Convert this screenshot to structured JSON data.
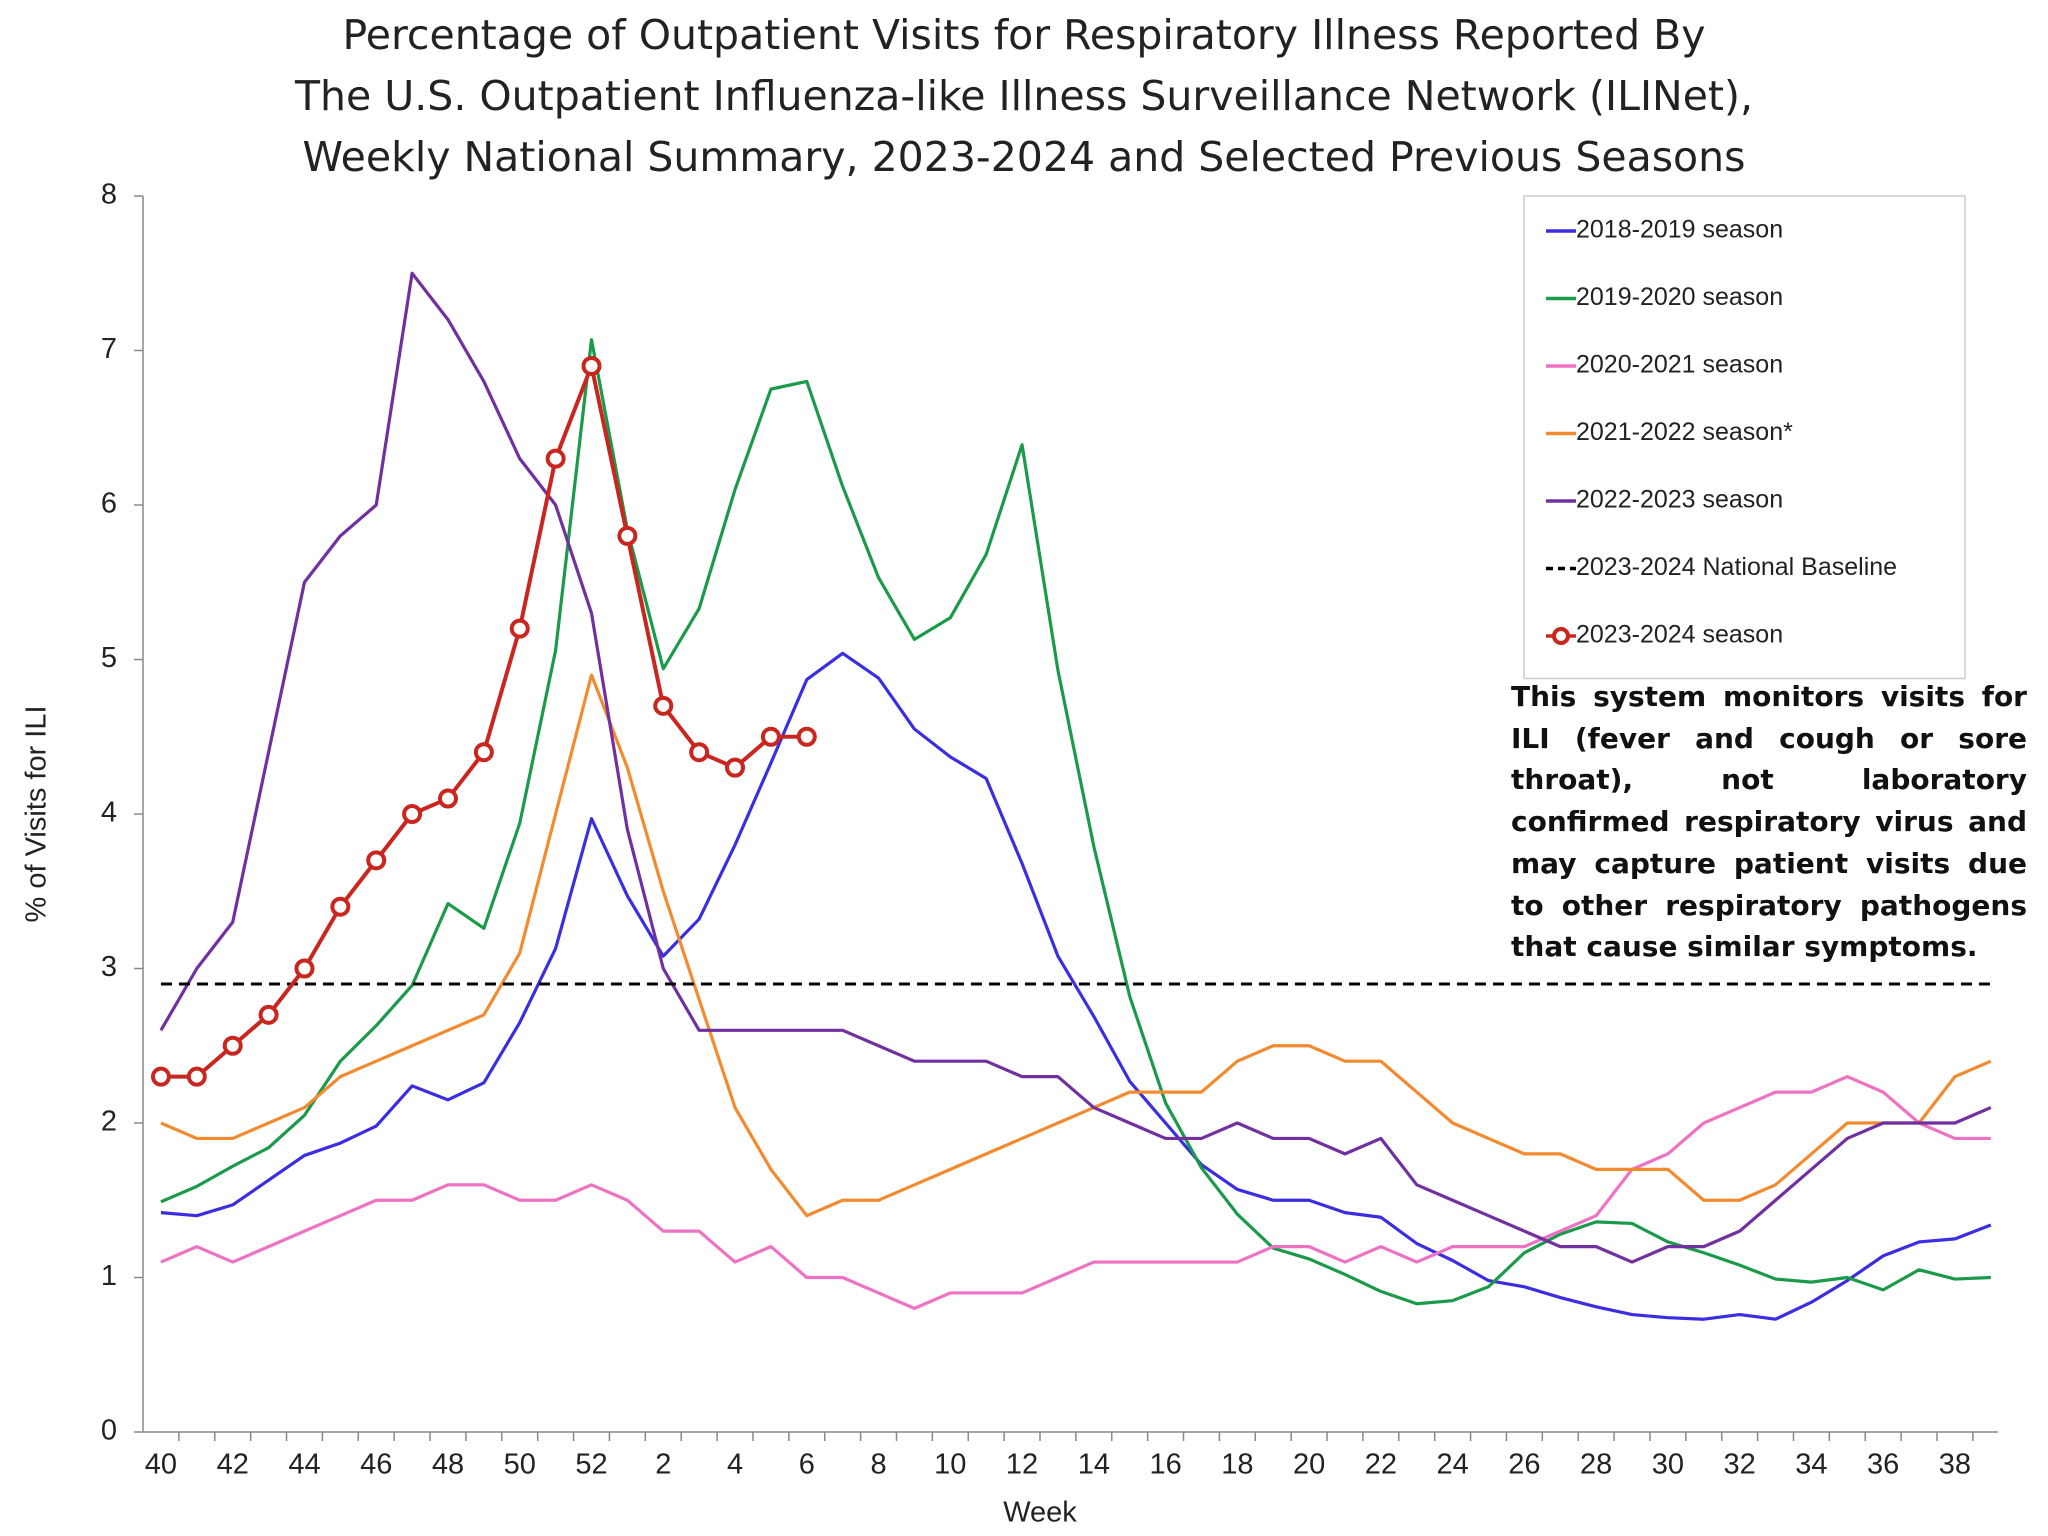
{
  "chart_data": {
    "type": "line",
    "title": [
      "Percentage of Outpatient Visits for Respiratory Illness Reported By",
      "The U.S. Outpatient Influenza-like Illness Surveillance Network (ILINet),",
      "Weekly National Summary, 2023-2024 and Selected Previous Seasons"
    ],
    "x_label": "Week",
    "y_label": "% of Visits for ILI",
    "categories": [
      40,
      null,
      42,
      null,
      44,
      null,
      46,
      null,
      48,
      null,
      50,
      null,
      52,
      null,
      2,
      null,
      4,
      null,
      6,
      null,
      8,
      null,
      10,
      null,
      12,
      null,
      14,
      null,
      16,
      null,
      18,
      null,
      20,
      null,
      22,
      null,
      24,
      null,
      26,
      null,
      28,
      null,
      30,
      null,
      32,
      null,
      34,
      null,
      36,
      null,
      38,
      null
    ],
    "ylim": [
      0,
      8
    ],
    "yticks": [
      0,
      1,
      2,
      3,
      4,
      5,
      6,
      7,
      8
    ],
    "grid": false,
    "legend": "upper right",
    "series": [
      {
        "name": "2018-2019 season",
        "color": "#3a2ee0",
        "values": [
          1.42,
          1.4,
          1.47,
          1.63,
          1.79,
          1.87,
          1.98,
          2.24,
          2.15,
          2.26,
          2.65,
          3.13,
          3.97,
          3.47,
          3.08,
          3.32,
          3.8,
          4.33,
          4.87,
          5.04,
          4.88,
          4.55,
          4.37,
          4.23,
          3.68,
          3.08,
          2.69,
          2.27,
          2.0,
          1.73,
          1.57,
          1.5,
          1.5,
          1.42,
          1.39,
          1.22,
          1.11,
          0.98,
          0.94,
          0.87,
          0.81,
          0.76,
          0.74,
          0.73,
          0.76,
          0.73,
          0.84,
          0.98,
          1.14,
          1.23,
          1.25,
          1.34
        ]
      },
      {
        "name": "2019-2020 season",
        "color": "#1a9a4a",
        "values": [
          1.49,
          1.59,
          1.72,
          1.84,
          2.05,
          2.4,
          2.63,
          2.89,
          3.42,
          3.26,
          3.94,
          5.06,
          7.07,
          5.84,
          4.94,
          5.33,
          6.1,
          6.75,
          6.8,
          6.12,
          5.53,
          5.13,
          5.27,
          5.68,
          6.39,
          4.93,
          3.79,
          2.82,
          2.13,
          1.71,
          1.41,
          1.19,
          1.12,
          1.02,
          0.91,
          0.83,
          0.85,
          0.94,
          1.16,
          1.28,
          1.36,
          1.35,
          1.23,
          1.16,
          1.08,
          0.99,
          0.97,
          1.0,
          0.92,
          1.05,
          0.99,
          1.0
        ]
      },
      {
        "name": "2020-2021 season",
        "color": "#ee72c3",
        "values": [
          1.1,
          1.2,
          1.1,
          1.2,
          1.3,
          1.4,
          1.5,
          1.5,
          1.6,
          1.6,
          1.5,
          1.5,
          1.6,
          1.5,
          1.3,
          1.3,
          1.1,
          1.2,
          1.0,
          1.0,
          0.9,
          0.8,
          0.9,
          0.9,
          0.9,
          1.0,
          1.1,
          1.1,
          1.1,
          1.1,
          1.1,
          1.2,
          1.2,
          1.1,
          1.2,
          1.1,
          1.2,
          1.2,
          1.2,
          1.3,
          1.4,
          1.7,
          1.8,
          2.0,
          2.1,
          2.2,
          2.2,
          2.3,
          2.2,
          2.0,
          1.9,
          1.9
        ]
      },
      {
        "name": "2021-2022 season*",
        "color": "#f28a30",
        "values": [
          2.0,
          1.9,
          1.9,
          2.0,
          2.1,
          2.3,
          2.4,
          2.5,
          2.6,
          2.7,
          3.1,
          4.0,
          4.9,
          4.3,
          3.5,
          2.8,
          2.1,
          1.7,
          1.4,
          1.5,
          1.5,
          1.6,
          1.7,
          1.8,
          1.9,
          2.0,
          2.1,
          2.2,
          2.2,
          2.2,
          2.4,
          2.5,
          2.5,
          2.4,
          2.4,
          2.2,
          2.0,
          1.9,
          1.8,
          1.8,
          1.7,
          1.7,
          1.7,
          1.5,
          1.5,
          1.6,
          1.8,
          2.0,
          2.0,
          2.0,
          2.3,
          2.4
        ]
      },
      {
        "name": "2022-2023 season",
        "color": "#7030a0",
        "values": [
          2.6,
          3.0,
          3.3,
          4.4,
          5.5,
          5.8,
          6.0,
          7.5,
          7.2,
          6.8,
          6.3,
          6.0,
          5.3,
          3.9,
          3.0,
          2.6,
          2.6,
          2.6,
          2.6,
          2.6,
          2.5,
          2.4,
          2.4,
          2.4,
          2.3,
          2.3,
          2.1,
          2.0,
          1.9,
          1.9,
          2.0,
          1.9,
          1.9,
          1.8,
          1.9,
          1.6,
          1.5,
          1.4,
          1.3,
          1.2,
          1.2,
          1.1,
          1.2,
          1.2,
          1.3,
          1.5,
          1.7,
          1.9,
          2.0,
          2.0,
          2.0,
          2.1
        ]
      },
      {
        "name": "2023-2024 National Baseline",
        "color": "#000000",
        "dashed": true,
        "values": [
          2.9,
          2.9,
          2.9,
          2.9,
          2.9,
          2.9,
          2.9,
          2.9,
          2.9,
          2.9,
          2.9,
          2.9,
          2.9,
          2.9,
          2.9,
          2.9,
          2.9,
          2.9,
          2.9,
          2.9,
          2.9,
          2.9,
          2.9,
          2.9,
          2.9,
          2.9,
          2.9,
          2.9,
          2.9,
          2.9,
          2.9,
          2.9,
          2.9,
          2.9,
          2.9,
          2.9,
          2.9,
          2.9,
          2.9,
          2.9,
          2.9,
          2.9,
          2.9,
          2.9,
          2.9,
          2.9,
          2.9,
          2.9,
          2.9,
          2.9,
          2.9,
          2.9
        ]
      },
      {
        "name": "2023-2024 season",
        "color": "#c8261e",
        "marker": "circle",
        "values": [
          2.3,
          2.3,
          2.5,
          2.7,
          3.0,
          3.4,
          3.7,
          4.0,
          4.1,
          4.4,
          5.2,
          6.3,
          6.9,
          5.8,
          4.7,
          4.4,
          4.3,
          4.5,
          4.5,
          null,
          null,
          null,
          null,
          null,
          null,
          null,
          null,
          null,
          null,
          null,
          null,
          null,
          null,
          null,
          null,
          null,
          null,
          null,
          null,
          null,
          null,
          null,
          null,
          null,
          null,
          null,
          null,
          null,
          null,
          null,
          null,
          null
        ]
      }
    ],
    "annotation": "This system monitors visits for ILI (fever and cough or sore throat), not laboratory confirmed respiratory virus and may capture patient visits due to other respiratory pathogens that cause similar symptoms."
  }
}
